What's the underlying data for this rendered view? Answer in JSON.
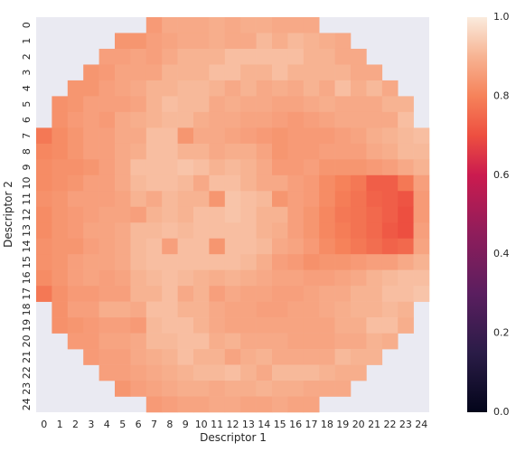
{
  "chart_data": {
    "type": "heatmap",
    "title": "",
    "xlabel": "Descriptor 1",
    "ylabel": "Descriptor 2",
    "x_ticks": [
      "0",
      "1",
      "2",
      "3",
      "4",
      "5",
      "6",
      "7",
      "8",
      "9",
      "10",
      "11",
      "12",
      "13",
      "14",
      "15",
      "16",
      "17",
      "18",
      "19",
      "20",
      "21",
      "22",
      "23",
      "24"
    ],
    "y_ticks": [
      "0",
      "1",
      "2",
      "3",
      "4",
      "5",
      "6",
      "7",
      "8",
      "9",
      "10",
      "11",
      "12",
      "13",
      "14",
      "15",
      "16",
      "17",
      "18",
      "19",
      "20",
      "21",
      "22",
      "23",
      "24"
    ],
    "colorbar": {
      "range": [
        0.0,
        1.0
      ],
      "ticks": [
        "0.0",
        "0.2",
        "0.4",
        "0.6",
        "0.8",
        "1.0"
      ],
      "colormap": "rocket"
    },
    "background_color": "#eaeaf2",
    "grid": false,
    "missing_value_note": "cells outside the circular region are empty (null)",
    "values": [
      [
        null,
        null,
        null,
        null,
        null,
        null,
        null,
        0.85,
        0.88,
        0.88,
        0.88,
        0.89,
        0.88,
        0.89,
        0.89,
        0.88,
        0.88,
        0.88,
        null,
        null,
        null,
        null,
        null,
        null,
        null
      ],
      [
        null,
        null,
        null,
        null,
        null,
        0.84,
        0.84,
        0.86,
        0.87,
        0.88,
        0.88,
        0.89,
        0.88,
        0.88,
        0.91,
        0.89,
        0.91,
        0.9,
        0.89,
        0.88,
        null,
        null,
        null,
        null,
        null
      ],
      [
        null,
        null,
        null,
        null,
        0.86,
        0.86,
        0.87,
        0.86,
        0.88,
        0.9,
        0.9,
        0.9,
        0.92,
        0.92,
        0.92,
        0.92,
        0.92,
        0.9,
        0.9,
        0.88,
        0.88,
        null,
        null,
        null,
        null
      ],
      [
        null,
        null,
        null,
        0.84,
        0.85,
        0.87,
        0.87,
        0.87,
        0.9,
        0.9,
        0.9,
        0.92,
        0.92,
        0.9,
        0.9,
        0.92,
        0.9,
        0.9,
        0.9,
        0.9,
        0.88,
        0.88,
        null,
        null,
        null
      ],
      [
        null,
        null,
        0.84,
        0.84,
        0.86,
        0.87,
        0.88,
        0.9,
        0.9,
        0.91,
        0.91,
        0.9,
        0.88,
        0.9,
        0.88,
        0.89,
        0.88,
        0.9,
        0.88,
        0.92,
        0.89,
        0.91,
        0.88,
        null,
        null
      ],
      [
        null,
        0.83,
        0.84,
        0.86,
        0.86,
        0.86,
        0.87,
        0.9,
        0.92,
        0.91,
        0.91,
        0.88,
        0.89,
        0.88,
        0.88,
        0.87,
        0.87,
        0.88,
        0.89,
        0.88,
        0.88,
        0.88,
        0.9,
        0.9,
        null
      ],
      [
        null,
        0.83,
        0.85,
        0.86,
        0.85,
        0.88,
        0.89,
        0.9,
        0.91,
        0.91,
        0.89,
        0.88,
        0.88,
        0.87,
        0.87,
        0.86,
        0.85,
        0.86,
        0.87,
        0.88,
        0.88,
        0.88,
        0.88,
        0.92,
        null
      ],
      [
        0.78,
        0.82,
        0.84,
        0.86,
        0.86,
        0.88,
        0.88,
        0.92,
        0.92,
        0.84,
        0.88,
        0.88,
        0.87,
        0.86,
        0.85,
        0.84,
        0.85,
        0.85,
        0.85,
        0.86,
        0.87,
        0.89,
        0.9,
        0.91,
        0.92
      ],
      [
        0.81,
        0.82,
        0.84,
        0.86,
        0.86,
        0.88,
        0.89,
        0.92,
        0.92,
        0.9,
        0.9,
        0.88,
        0.89,
        0.89,
        0.87,
        0.84,
        0.85,
        0.85,
        0.86,
        0.86,
        0.86,
        0.88,
        0.89,
        0.91,
        0.91
      ],
      [
        0.82,
        0.83,
        0.83,
        0.84,
        0.86,
        0.88,
        0.92,
        0.92,
        0.92,
        0.93,
        0.92,
        0.9,
        0.91,
        0.9,
        0.88,
        0.85,
        0.85,
        0.86,
        0.84,
        0.84,
        0.84,
        0.85,
        0.86,
        0.88,
        0.9
      ],
      [
        0.82,
        0.83,
        0.84,
        0.86,
        0.86,
        0.88,
        0.91,
        0.92,
        0.92,
        0.91,
        0.88,
        0.92,
        0.92,
        0.9,
        0.88,
        0.88,
        0.86,
        0.85,
        0.82,
        0.8,
        0.78,
        0.73,
        0.73,
        0.78,
        0.86
      ],
      [
        0.83,
        0.84,
        0.86,
        0.86,
        0.86,
        0.87,
        0.9,
        0.88,
        0.91,
        0.9,
        0.9,
        0.84,
        0.93,
        0.92,
        0.91,
        0.84,
        0.86,
        0.85,
        0.82,
        0.79,
        0.77,
        0.74,
        0.73,
        0.71,
        0.85
      ],
      [
        0.82,
        0.84,
        0.85,
        0.86,
        0.87,
        0.87,
        0.86,
        0.9,
        0.91,
        0.9,
        0.92,
        0.92,
        0.93,
        0.92,
        0.9,
        0.9,
        0.86,
        0.84,
        0.81,
        0.78,
        0.77,
        0.75,
        0.73,
        0.7,
        0.85
      ],
      [
        0.82,
        0.84,
        0.85,
        0.87,
        0.87,
        0.88,
        0.91,
        0.91,
        0.92,
        0.91,
        0.92,
        0.92,
        0.92,
        0.92,
        0.9,
        0.89,
        0.86,
        0.84,
        0.81,
        0.79,
        0.77,
        0.75,
        0.72,
        0.7,
        0.86
      ],
      [
        0.83,
        0.84,
        0.84,
        0.86,
        0.87,
        0.88,
        0.91,
        0.92,
        0.86,
        0.92,
        0.92,
        0.84,
        0.92,
        0.92,
        0.91,
        0.88,
        0.87,
        0.85,
        0.82,
        0.8,
        0.78,
        0.76,
        0.74,
        0.75,
        0.87
      ],
      [
        0.83,
        0.84,
        0.86,
        0.87,
        0.87,
        0.88,
        0.91,
        0.92,
        0.92,
        0.92,
        0.92,
        0.92,
        0.92,
        0.91,
        0.89,
        0.86,
        0.85,
        0.83,
        0.84,
        0.84,
        0.85,
        0.86,
        0.86,
        0.88,
        0.9
      ],
      [
        0.82,
        0.84,
        0.86,
        0.87,
        0.86,
        0.87,
        0.9,
        0.91,
        0.92,
        0.91,
        0.9,
        0.89,
        0.9,
        0.89,
        0.88,
        0.87,
        0.87,
        0.86,
        0.86,
        0.87,
        0.88,
        0.9,
        0.91,
        0.92,
        0.92
      ],
      [
        0.78,
        0.83,
        0.85,
        0.85,
        0.86,
        0.86,
        0.9,
        0.9,
        0.92,
        0.88,
        0.9,
        0.86,
        0.88,
        0.87,
        0.87,
        0.86,
        0.86,
        0.87,
        0.88,
        0.88,
        0.9,
        0.9,
        0.92,
        0.92,
        0.93
      ],
      [
        null,
        0.83,
        0.86,
        0.86,
        0.89,
        0.89,
        0.88,
        0.92,
        0.92,
        0.9,
        0.9,
        0.88,
        0.87,
        0.87,
        0.86,
        0.86,
        0.87,
        0.87,
        0.88,
        0.89,
        0.9,
        0.9,
        0.91,
        0.9,
        null
      ],
      [
        null,
        0.83,
        0.84,
        0.85,
        0.86,
        0.86,
        0.85,
        0.91,
        0.92,
        0.92,
        0.9,
        0.88,
        0.87,
        0.87,
        0.87,
        0.87,
        0.87,
        0.87,
        0.87,
        0.89,
        0.89,
        0.92,
        0.92,
        0.89,
        null
      ],
      [
        null,
        null,
        0.85,
        0.85,
        0.87,
        0.87,
        0.88,
        0.91,
        0.91,
        0.92,
        0.92,
        0.89,
        0.9,
        0.88,
        0.88,
        0.88,
        0.87,
        0.87,
        0.87,
        0.88,
        0.88,
        0.9,
        0.89,
        null,
        null
      ],
      [
        null,
        null,
        null,
        0.85,
        0.86,
        0.86,
        0.88,
        0.89,
        0.9,
        0.92,
        0.9,
        0.9,
        0.87,
        0.89,
        0.9,
        0.88,
        0.88,
        0.88,
        0.88,
        0.91,
        0.9,
        0.9,
        null,
        null,
        null
      ],
      [
        null,
        null,
        null,
        null,
        0.86,
        0.86,
        0.87,
        0.88,
        0.89,
        0.9,
        0.91,
        0.91,
        0.92,
        0.9,
        0.88,
        0.91,
        0.91,
        0.91,
        0.9,
        0.89,
        0.89,
        null,
        null,
        null,
        null
      ],
      [
        null,
        null,
        null,
        null,
        null,
        0.84,
        0.86,
        0.87,
        0.88,
        0.89,
        0.89,
        0.88,
        0.89,
        0.89,
        0.9,
        0.89,
        0.89,
        0.88,
        0.88,
        0.88,
        null,
        null,
        null,
        null,
        null
      ],
      [
        null,
        null,
        null,
        null,
        null,
        null,
        null,
        0.85,
        0.86,
        0.87,
        0.87,
        0.88,
        0.88,
        0.87,
        0.87,
        0.88,
        0.87,
        0.87,
        null,
        null,
        null,
        null,
        null,
        null,
        null
      ]
    ]
  }
}
